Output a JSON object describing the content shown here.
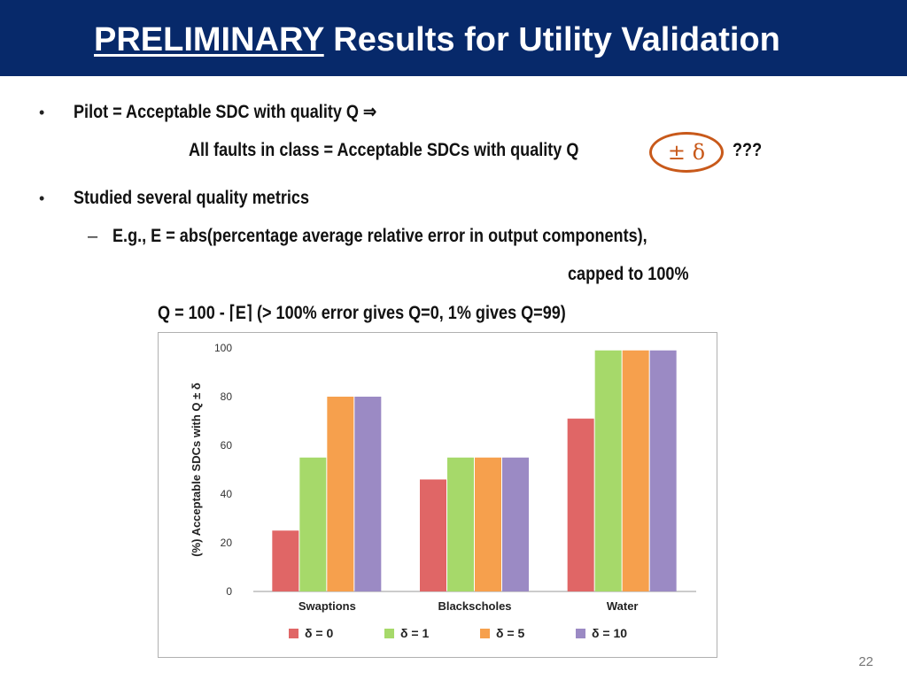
{
  "header": {
    "title_emphasis": "PRELIMINARY",
    "title_rest": " Results for Utility Validation"
  },
  "body": {
    "bullet_symbol": "•",
    "dash_symbol": "–",
    "line1": "Pilot = Acceptable SDC with quality Q ⇒",
    "line2": "All faults in class = Acceptable SDCs with quality Q",
    "line2_circled": "± δ",
    "line2_tail": "???",
    "line3": "Studied several quality metrics",
    "line4": "E.g., E = abs(percentage average relative error in output components),",
    "line5": "capped to 100%",
    "line6": "Q = 100 - ⌈E⌉  (> 100% error gives Q=0, 1% gives Q=99)"
  },
  "colors": {
    "header_bg": "#07296a",
    "circle": "#c8591a",
    "series": [
      "#e06666",
      "#a6d96a",
      "#f6a04d",
      "#9b8ac4"
    ]
  },
  "chart_data": {
    "type": "bar",
    "ylabel": "(%) Acceptable SDCs with Q ± δ",
    "ylim": [
      0,
      100
    ],
    "yticks": [
      0,
      20,
      40,
      60,
      80,
      100
    ],
    "grid": false,
    "legend_position": "bottom",
    "categories": [
      "Swaptions",
      "Blackscholes",
      "Water"
    ],
    "series": [
      {
        "name": "δ = 0",
        "values": [
          25,
          46,
          71
        ]
      },
      {
        "name": "δ = 1",
        "values": [
          55,
          55,
          99
        ]
      },
      {
        "name": "δ = 5",
        "values": [
          80,
          55,
          99
        ]
      },
      {
        "name": "δ = 10",
        "values": [
          80,
          55,
          99
        ]
      }
    ]
  },
  "page_number": "22"
}
